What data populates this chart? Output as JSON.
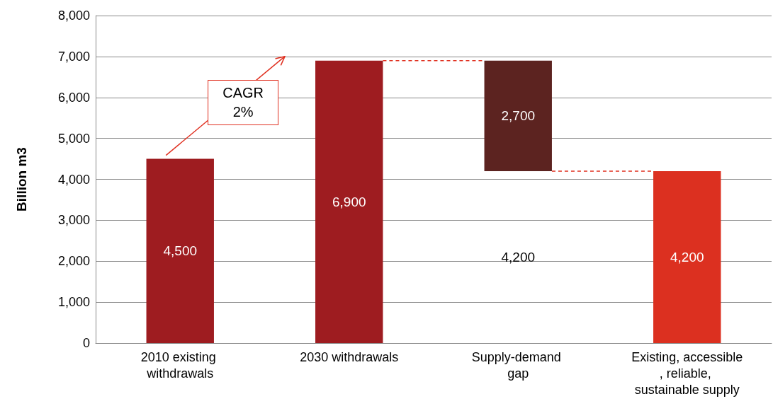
{
  "chart_data": {
    "type": "bar",
    "ylabel": "Billion m3",
    "categories": [
      "2010 existing withdrawals",
      "2030 withdrawals",
      "Supply-demand gap",
      "Existing, accessible, reliable, sustainable supply"
    ],
    "values": [
      4500,
      6900,
      2700,
      4200
    ],
    "value_labels": [
      "4,500",
      "6,900",
      "2,700",
      "4,200"
    ],
    "base": [
      0,
      0,
      4200,
      0
    ],
    "colors": [
      "#9e1c20",
      "#9e1c20",
      "#5c2320",
      "#dc3020"
    ],
    "ylim": [
      0,
      8000
    ],
    "yticks": [
      0,
      {
        "value": 1000,
        "label": "1,000"
      },
      {
        "value": 2000,
        "label": "2,000"
      },
      {
        "value": 3000,
        "label": "3,000"
      },
      {
        "value": 4000,
        "label": "4,000"
      },
      {
        "value": 5000,
        "label": "5,000"
      },
      {
        "value": 6000,
        "label": "6,000"
      },
      {
        "value": 7000,
        "label": "7,000"
      },
      {
        "value": 8000,
        "label": "8,000"
      }
    ],
    "grid": "y",
    "ref_lines": [
      {
        "axis": "y",
        "value": 6900,
        "color": "#e03020",
        "line_style": "dashed"
      },
      {
        "axis": "y",
        "value": 4200,
        "color": "#e03020",
        "line_style": "dashed"
      }
    ],
    "annotations": [
      "4,200",
      "CAGR\n2%"
    ]
  }
}
